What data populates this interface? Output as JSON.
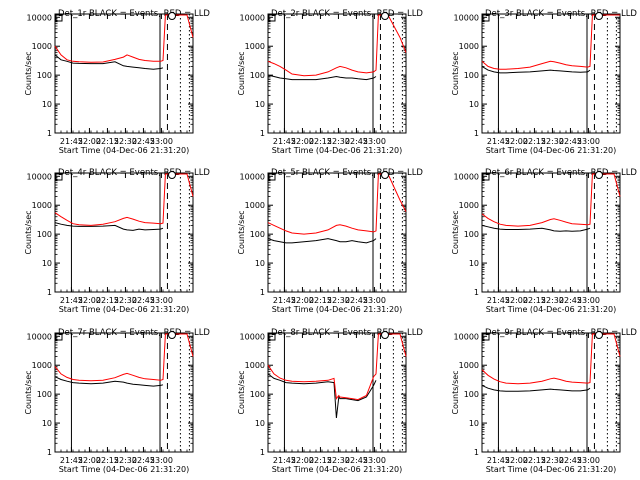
{
  "figure": {
    "ylabel": "Counts/sec",
    "xlabel": "Start Time (04-Dec-06 21:31:20)",
    "y_tick_labels": [
      "1",
      "10",
      "100",
      "1000",
      "10000"
    ],
    "x_tick_labels": [
      "21:45",
      "22:00",
      "22:15",
      "22:30",
      "22:45",
      "23:00"
    ],
    "colors": {
      "events": "#000000",
      "lld": "#ff0000",
      "axes": "#000000",
      "background": "#ffffff"
    },
    "axis_type": "log-y"
  },
  "chart_data": [
    {
      "type": "line",
      "title": "Det_1r BLACK = Events, RED = LLD",
      "x_minutes": [
        0,
        5,
        10,
        15,
        20,
        30,
        40,
        50,
        57,
        60,
        65,
        70,
        75,
        82,
        88,
        90,
        92,
        100,
        110,
        115
      ],
      "series": [
        {
          "name": "Events",
          "color": "#000000",
          "y": [
            500,
            340,
            300,
            260,
            255,
            250,
            250,
            290,
            210,
            200,
            190,
            180,
            170,
            160,
            170,
            180,
            null,
            null,
            null,
            null
          ]
        },
        {
          "name": "LLD",
          "color": "#ff0000",
          "y": [
            1000,
            500,
            340,
            300,
            290,
            280,
            285,
            350,
            420,
            500,
            420,
            350,
            320,
            300,
            300,
            320,
            12000,
            12000,
            12000,
            2000
          ]
        }
      ],
      "xlim": [
        0,
        115
      ],
      "ylim": [
        1,
        13000
      ],
      "vlines": [
        {
          "x": 13.7,
          "style": "solid"
        },
        {
          "x": 87.5,
          "style": "solid"
        },
        {
          "x": 93.7,
          "style": "dashed"
        },
        {
          "x": 104.5,
          "style": "dotted"
        },
        {
          "x": 112,
          "style": "dotted"
        }
      ]
    },
    {
      "type": "line",
      "title": "Det_2r BLACK = Events, RED = LLD",
      "x_minutes": [
        0,
        5,
        10,
        15,
        20,
        30,
        40,
        50,
        57,
        60,
        65,
        70,
        75,
        82,
        88,
        90,
        92,
        100,
        110,
        115
      ],
      "series": [
        {
          "name": "Events",
          "color": "#000000",
          "y": [
            100,
            90,
            80,
            75,
            70,
            70,
            70,
            80,
            90,
            85,
            80,
            80,
            75,
            70,
            80,
            90,
            null,
            null,
            null,
            null
          ]
        },
        {
          "name": "LLD",
          "color": "#ff0000",
          "y": [
            300,
            250,
            200,
            150,
            110,
            95,
            100,
            130,
            180,
            200,
            180,
            150,
            130,
            120,
            130,
            150,
            12000,
            12000,
            2000,
            600
          ]
        }
      ],
      "xlim": [
        0,
        115
      ],
      "ylim": [
        1,
        13000
      ],
      "vlines": [
        {
          "x": 13.7,
          "style": "solid"
        },
        {
          "x": 87.5,
          "style": "solid"
        },
        {
          "x": 93.7,
          "style": "dashed"
        },
        {
          "x": 104.5,
          "style": "dotted"
        },
        {
          "x": 112,
          "style": "dotted"
        }
      ]
    },
    {
      "type": "line",
      "title": "Det_3r BLACK = Events, RED = LLD",
      "x_minutes": [
        0,
        5,
        10,
        15,
        20,
        30,
        40,
        50,
        57,
        60,
        65,
        70,
        75,
        82,
        88,
        90,
        92,
        100,
        110,
        115
      ],
      "series": [
        {
          "name": "Events",
          "color": "#000000",
          "y": [
            200,
            150,
            130,
            120,
            120,
            125,
            130,
            140,
            150,
            145,
            140,
            135,
            130,
            125,
            130,
            150,
            null,
            null,
            null,
            null
          ]
        },
        {
          "name": "LLD",
          "color": "#ff0000",
          "y": [
            300,
            200,
            170,
            160,
            160,
            170,
            190,
            250,
            300,
            290,
            260,
            230,
            210,
            200,
            190,
            200,
            12000,
            12000,
            12000,
            12000
          ]
        }
      ],
      "xlim": [
        0,
        115
      ],
      "ylim": [
        1,
        13000
      ],
      "vlines": [
        {
          "x": 13.7,
          "style": "solid"
        },
        {
          "x": 87.5,
          "style": "solid"
        },
        {
          "x": 93.7,
          "style": "dashed"
        },
        {
          "x": 104.5,
          "style": "dotted"
        },
        {
          "x": 112,
          "style": "dotted"
        }
      ]
    },
    {
      "type": "line",
      "title": "Det_4r BLACK = Events, RED = LLD",
      "x_minutes": [
        0,
        5,
        10,
        15,
        20,
        30,
        40,
        50,
        57,
        60,
        65,
        70,
        75,
        82,
        88,
        90,
        92,
        100,
        110,
        115
      ],
      "series": [
        {
          "name": "Events",
          "color": "#000000",
          "y": [
            250,
            220,
            200,
            190,
            185,
            185,
            190,
            200,
            150,
            140,
            135,
            150,
            140,
            145,
            150,
            160,
            null,
            null,
            null,
            null
          ]
        },
        {
          "name": "LLD",
          "color": "#ff0000",
          "y": [
            550,
            400,
            300,
            230,
            210,
            200,
            220,
            270,
            350,
            380,
            330,
            280,
            250,
            240,
            230,
            240,
            12000,
            12000,
            12000,
            2000
          ]
        }
      ],
      "xlim": [
        0,
        115
      ],
      "ylim": [
        1,
        13000
      ],
      "vlines": [
        {
          "x": 13.7,
          "style": "solid"
        },
        {
          "x": 87.5,
          "style": "solid"
        },
        {
          "x": 93.7,
          "style": "dashed"
        },
        {
          "x": 104.5,
          "style": "dotted"
        },
        {
          "x": 112,
          "style": "dotted"
        }
      ]
    },
    {
      "type": "line",
      "title": "Det_5r BLACK = Events, RED = LLD",
      "x_minutes": [
        0,
        5,
        10,
        15,
        20,
        30,
        40,
        50,
        57,
        60,
        65,
        70,
        75,
        82,
        88,
        90,
        92,
        100,
        110,
        115
      ],
      "series": [
        {
          "name": "Events",
          "color": "#000000",
          "y": [
            70,
            60,
            55,
            50,
            50,
            55,
            60,
            70,
            60,
            55,
            55,
            60,
            55,
            50,
            60,
            70,
            null,
            null,
            null,
            null
          ]
        },
        {
          "name": "LLD",
          "color": "#ff0000",
          "y": [
            250,
            200,
            160,
            130,
            110,
            100,
            110,
            140,
            200,
            210,
            190,
            160,
            140,
            130,
            120,
            130,
            12000,
            12000,
            1500,
            600
          ]
        }
      ],
      "xlim": [
        0,
        115
      ],
      "ylim": [
        1,
        13000
      ],
      "vlines": [
        {
          "x": 13.7,
          "style": "solid"
        },
        {
          "x": 87.5,
          "style": "solid"
        },
        {
          "x": 93.7,
          "style": "dashed"
        },
        {
          "x": 104.5,
          "style": "dotted"
        },
        {
          "x": 112,
          "style": "dotted"
        }
      ]
    },
    {
      "type": "line",
      "title": "Det_6r BLACK = Events, RED = LLD",
      "x_minutes": [
        0,
        5,
        10,
        15,
        20,
        30,
        40,
        50,
        57,
        60,
        65,
        70,
        75,
        82,
        88,
        90,
        92,
        100,
        110,
        115
      ],
      "series": [
        {
          "name": "Events",
          "color": "#000000",
          "y": [
            200,
            180,
            160,
            150,
            145,
            145,
            150,
            160,
            140,
            130,
            125,
            130,
            125,
            130,
            150,
            160,
            null,
            null,
            null,
            null
          ]
        },
        {
          "name": "LLD",
          "color": "#ff0000",
          "y": [
            500,
            350,
            270,
            220,
            200,
            190,
            200,
            250,
            320,
            340,
            300,
            260,
            230,
            220,
            210,
            220,
            12000,
            12000,
            12000,
            2000
          ]
        }
      ],
      "xlim": [
        0,
        115
      ],
      "ylim": [
        1,
        13000
      ],
      "vlines": [
        {
          "x": 13.7,
          "style": "solid"
        },
        {
          "x": 87.5,
          "style": "solid"
        },
        {
          "x": 93.7,
          "style": "dashed"
        },
        {
          "x": 104.5,
          "style": "dotted"
        },
        {
          "x": 112,
          "style": "dotted"
        }
      ]
    },
    {
      "type": "line",
      "title": "Det_7r BLACK = Events, RED = LLD",
      "x_minutes": [
        0,
        5,
        10,
        15,
        20,
        30,
        40,
        50,
        57,
        60,
        65,
        70,
        75,
        82,
        88,
        90,
        92,
        100,
        110,
        115
      ],
      "series": [
        {
          "name": "Events",
          "color": "#000000",
          "y": [
            400,
            320,
            280,
            250,
            240,
            230,
            240,
            280,
            260,
            240,
            220,
            210,
            200,
            190,
            200,
            210,
            null,
            null,
            null,
            null
          ]
        },
        {
          "name": "LLD",
          "color": "#ff0000",
          "y": [
            900,
            500,
            380,
            320,
            300,
            290,
            300,
            370,
            480,
            520,
            450,
            380,
            340,
            320,
            300,
            320,
            12000,
            12000,
            12000,
            2000
          ]
        }
      ],
      "xlim": [
        0,
        115
      ],
      "ylim": [
        1,
        13000
      ],
      "vlines": [
        {
          "x": 13.7,
          "style": "solid"
        },
        {
          "x": 87.5,
          "style": "solid"
        },
        {
          "x": 93.7,
          "style": "dashed"
        },
        {
          "x": 104.5,
          "style": "dotted"
        },
        {
          "x": 112,
          "style": "dotted"
        }
      ]
    },
    {
      "type": "line",
      "title": "Det_8r BLACK = Events, RED = LLD",
      "x_minutes": [
        0,
        5,
        10,
        15,
        20,
        30,
        40,
        50,
        55,
        57,
        59,
        60,
        65,
        70,
        75,
        82,
        88,
        90,
        92,
        100,
        110,
        115
      ],
      "series": [
        {
          "name": "Events",
          "color": "#000000",
          "y": [
            500,
            350,
            300,
            250,
            240,
            230,
            240,
            270,
            250,
            15,
            80,
            70,
            70,
            65,
            60,
            80,
            200,
            300,
            null,
            null,
            null,
            null
          ]
        },
        {
          "name": "LLD",
          "color": "#ff0000",
          "y": [
            1000,
            500,
            360,
            300,
            280,
            270,
            280,
            300,
            350,
            70,
            90,
            80,
            75,
            70,
            65,
            90,
            400,
            500,
            12000,
            12000,
            12000,
            2000
          ]
        }
      ],
      "xlim": [
        0,
        115
      ],
      "ylim": [
        1,
        13000
      ],
      "vlines": [
        {
          "x": 13.7,
          "style": "solid"
        },
        {
          "x": 87.5,
          "style": "solid"
        },
        {
          "x": 93.7,
          "style": "dashed"
        },
        {
          "x": 104.5,
          "style": "dotted"
        },
        {
          "x": 112,
          "style": "dotted"
        }
      ]
    },
    {
      "type": "line",
      "title": "Det_9r BLACK = Events, RED = LLD",
      "x_minutes": [
        0,
        5,
        10,
        15,
        20,
        30,
        40,
        50,
        57,
        60,
        65,
        70,
        75,
        82,
        88,
        90,
        92,
        100,
        110,
        115
      ],
      "series": [
        {
          "name": "Events",
          "color": "#000000",
          "y": [
            200,
            160,
            140,
            130,
            125,
            125,
            130,
            140,
            150,
            145,
            140,
            135,
            130,
            130,
            140,
            160,
            null,
            null,
            null,
            null
          ]
        },
        {
          "name": "LLD",
          "color": "#ff0000",
          "y": [
            700,
            450,
            330,
            270,
            240,
            230,
            240,
            280,
            340,
            360,
            320,
            280,
            260,
            250,
            240,
            250,
            12000,
            12000,
            12000,
            2000
          ]
        }
      ],
      "xlim": [
        0,
        115
      ],
      "ylim": [
        1,
        13000
      ],
      "vlines": [
        {
          "x": 13.7,
          "style": "solid"
        },
        {
          "x": 87.5,
          "style": "solid"
        },
        {
          "x": 93.7,
          "style": "dashed"
        },
        {
          "x": 104.5,
          "style": "dotted"
        },
        {
          "x": 112,
          "style": "dotted"
        }
      ]
    }
  ]
}
